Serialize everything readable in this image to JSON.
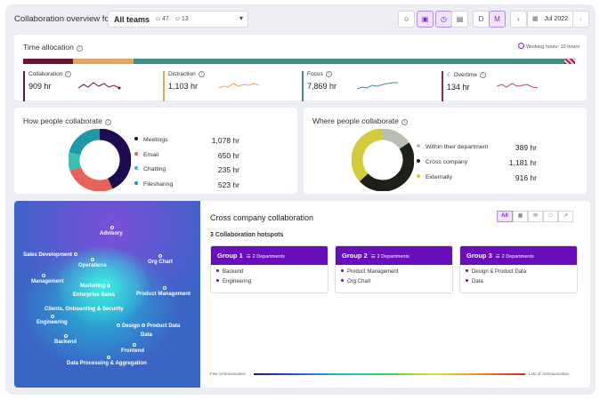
{
  "header": {
    "title": "Collaboration overview for",
    "team_select": "All teams",
    "people_count": "47",
    "group_count": "13",
    "period_d": "D",
    "period_m": "M",
    "date": "Jul 2022"
  },
  "time_allocation": {
    "title": "Time allocation",
    "working_hours": "Working hours: 10 hours",
    "bar_fractions": [
      0.09,
      0.11,
      0.78,
      0.02
    ],
    "colors": {
      "collaboration": "#6e1230",
      "distraction": "#e9a35a",
      "focus": "#3f8f86",
      "overtime": "#9b2743"
    },
    "stats": [
      {
        "label": "Collaboration",
        "value": "909 hr"
      },
      {
        "label": "Distraction",
        "value": "1,103 hr"
      },
      {
        "label": "Focus",
        "value": "7,869 hr"
      },
      {
        "label": "Overtime",
        "value": "134 hr"
      }
    ]
  },
  "how_people": {
    "title": "How people collaborate",
    "items": [
      {
        "label": "Meetings",
        "value": "1,078 hr",
        "color": "#1f0b52"
      },
      {
        "label": "Email",
        "value": "650 hr",
        "color": "#e8615a"
      },
      {
        "label": "Chatting",
        "value": "235 hr",
        "color": "#36c0b6"
      },
      {
        "label": "Filesharing",
        "value": "523 hr",
        "color": "#1e9aa6"
      }
    ]
  },
  "where_people": {
    "title": "Where people collaborate",
    "items": [
      {
        "label": "Within their department",
        "value": "389 hr",
        "color": "#b7c0b0"
      },
      {
        "label": "Cross company",
        "value": "1,181 hr",
        "color": "#1c2018"
      },
      {
        "label": "Externally",
        "value": "916 hr",
        "color": "#d2cc3a"
      }
    ]
  },
  "map": {
    "nodes": [
      "Advisory",
      "Sales Development",
      "Org Chart",
      "Operations",
      "Management",
      "Marketing",
      "Enterprise Sales",
      "Product Management",
      "Clients, Onboarding & Security",
      "Engineering",
      "Design",
      "Product Data",
      "Data",
      "Backend",
      "Frontend",
      "Data Processing & Aggregation"
    ]
  },
  "cross_company": {
    "title": "Cross company collaboration",
    "filter_all": "All",
    "hotspots": "3 Collaboration hotspots",
    "groups": [
      {
        "name": "Group 1",
        "depts": "2 Departments",
        "items": [
          "Backend",
          "Engineering"
        ]
      },
      {
        "name": "Group 2",
        "depts": "2 Departments",
        "items": [
          "Product Management",
          "Org Chart"
        ]
      },
      {
        "name": "Group 3",
        "depts": "2 Departments",
        "items": [
          "Design & Product Data",
          "Data"
        ]
      }
    ],
    "scale_low": "Few communication",
    "scale_high": "Lots of communication"
  }
}
